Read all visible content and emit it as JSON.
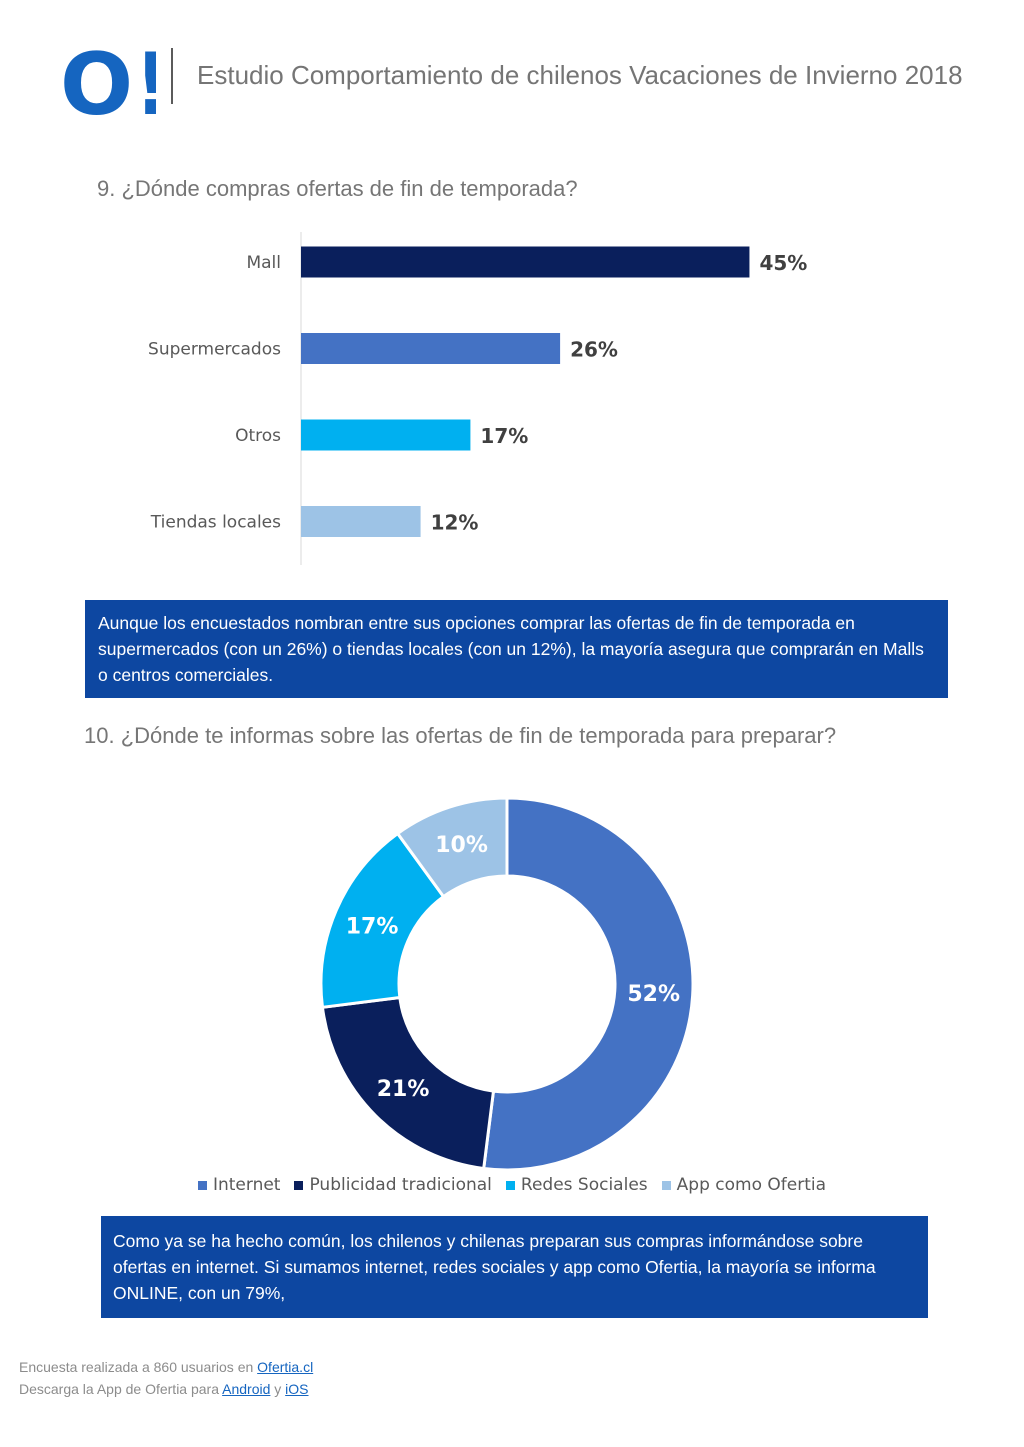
{
  "header": {
    "title": "Estudio Comportamiento de chilenos Vacaciones de Invierno 2018",
    "logo_text": "O!",
    "brand_color": "#1565c0"
  },
  "question9": {
    "title": "9. ¿Dónde compras ofertas de fin de temporada?",
    "note": "Aunque los encuestados nombran entre sus opciones comprar las ofertas de fin de temporada en supermercados (con un 26%) o tiendas locales (con un 12%), la mayoría asegura que comprarán en Malls o centros comerciales."
  },
  "question10": {
    "title": "10. ¿Dónde te informas sobre las ofertas de fin de temporada para preparar?",
    "note": "Como ya se ha hecho común, los chilenos y chilenas preparan sus compras informándose sobre ofertas en internet. Si sumamos internet, redes sociales y app como Ofertia, la mayoría se informa ONLINE, con un 79%,"
  },
  "chart_data": [
    {
      "type": "bar",
      "orientation": "horizontal",
      "categories": [
        "Mall",
        "Supermercados",
        "Otros",
        "Tiendas locales"
      ],
      "values": [
        45,
        26,
        17,
        12
      ],
      "labels": [
        "45%",
        "26%",
        "17%",
        "12%"
      ],
      "colors": [
        "#0a1f5c",
        "#4472c4",
        "#00b0f0",
        "#9dc3e6"
      ],
      "xlim": [
        0,
        58
      ],
      "grid": false
    },
    {
      "type": "pie",
      "variant": "donut",
      "series": [
        {
          "name": "Internet",
          "value": 52,
          "label": "52%",
          "color": "#4472c4"
        },
        {
          "name": "Publicidad tradicional",
          "value": 21,
          "label": "21%",
          "color": "#0a1f5c"
        },
        {
          "name": "Redes Sociales",
          "value": 17,
          "label": "17%",
          "color": "#00b0f0"
        },
        {
          "name": "App como Ofertia",
          "value": 10,
          "label": "10%",
          "color": "#9dc3e6"
        }
      ],
      "legend_position": "bottom"
    }
  ],
  "footer": {
    "line1_text": "Encuesta realizada a 860 usuarios en ",
    "line1_link": "Ofertia.cl",
    "line2_text": "Descarga la App de Ofertia para ",
    "android_link": "Android",
    "connector": " y ",
    "ios_link": "iOS"
  }
}
